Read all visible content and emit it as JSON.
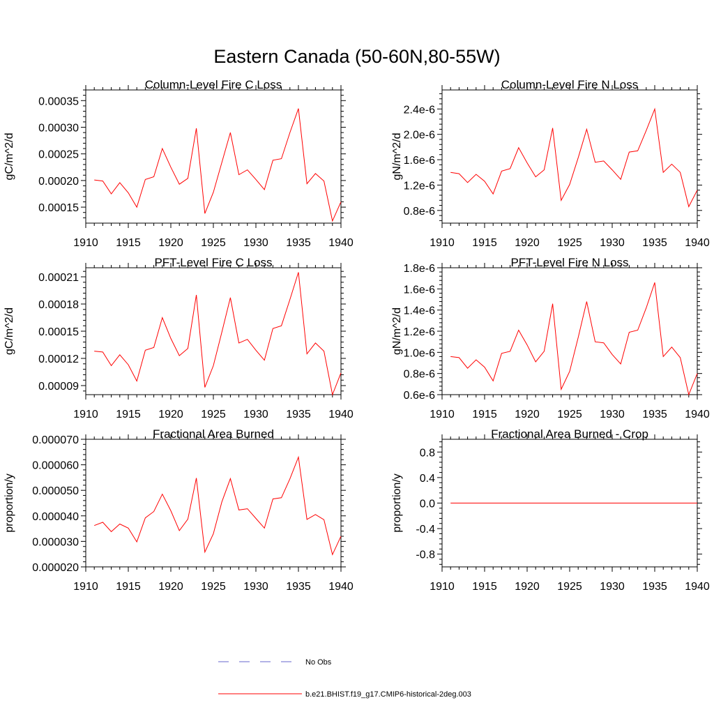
{
  "figure": {
    "title": "Eastern Canada (50-60N,80-55W)"
  },
  "legend": {
    "items": [
      {
        "label": "No Obs",
        "color": "#6666cc",
        "dash": true
      },
      {
        "label": "b.e21.BHIST.f19_g17.CMIP6-historical-2deg.003",
        "color": "#ff0000",
        "dash": false
      }
    ]
  },
  "colors": {
    "series": "#ff0000",
    "axis": "#000000"
  },
  "chart_data": [
    {
      "type": "line",
      "title": "Column-Level Fire C Loss",
      "ylabel": "gC/m^2/d",
      "xlim": [
        1910,
        1940
      ],
      "ylim": [
        0.00012,
        0.00037
      ],
      "xticks": [
        1910,
        1915,
        1920,
        1925,
        1930,
        1935,
        1940
      ],
      "yticks": [
        0.00015,
        0.0002,
        0.00025,
        0.0003,
        0.00035
      ],
      "ytick_labels": [
        "0.00015",
        "0.00020",
        "0.00025",
        "0.00030",
        "0.00035"
      ],
      "x": [
        1911,
        1912,
        1913,
        1914,
        1915,
        1916,
        1917,
        1918,
        1919,
        1920,
        1921,
        1922,
        1923,
        1924,
        1925,
        1926,
        1927,
        1928,
        1929,
        1930,
        1931,
        1932,
        1933,
        1934,
        1935,
        1936,
        1937,
        1938,
        1939,
        1940
      ],
      "series": [
        {
          "name": "b.e21.BHIST.f19_g17.CMIP6-historical-2deg.003",
          "values": [
            0.000201,
            0.000199,
            0.000175,
            0.000196,
            0.000177,
            0.00015,
            0.000202,
            0.000207,
            0.00026,
            0.000225,
            0.000193,
            0.000204,
            0.000298,
            0.000138,
            0.000178,
            0.000234,
            0.00029,
            0.000211,
            0.00022,
            0.000202,
            0.000183,
            0.000238,
            0.000241,
            0.00029,
            0.000335,
            0.000194,
            0.000213,
            0.000199,
            0.000124,
            0.00016
          ]
        }
      ]
    },
    {
      "type": "line",
      "title": "Column-Level Fire N Loss",
      "ylabel": "gN/m^2/d",
      "xlim": [
        1910,
        1940
      ],
      "ylim": [
        6e-07,
        2.7e-06
      ],
      "xticks": [
        1910,
        1915,
        1920,
        1925,
        1930,
        1935,
        1940
      ],
      "yticks": [
        8e-07,
        1.2e-06,
        1.6e-06,
        2e-06,
        2.4e-06
      ],
      "ytick_labels": [
        "0.8e-6",
        "1.2e-6",
        "1.6e-6",
        "2.0e-6",
        "2.4e-6"
      ],
      "x": [
        1911,
        1912,
        1913,
        1914,
        1915,
        1916,
        1917,
        1918,
        1919,
        1920,
        1921,
        1922,
        1923,
        1924,
        1925,
        1926,
        1927,
        1928,
        1929,
        1930,
        1931,
        1932,
        1933,
        1934,
        1935,
        1936,
        1937,
        1938,
        1939,
        1940
      ],
      "series": [
        {
          "name": "b.e21.BHIST.f19_g17.CMIP6-historical-2deg.003",
          "values": [
            1.4e-06,
            1.38e-06,
            1.24e-06,
            1.37e-06,
            1.26e-06,
            1.06e-06,
            1.42e-06,
            1.46e-06,
            1.79e-06,
            1.55e-06,
            1.33e-06,
            1.44e-06,
            2.1e-06,
            9.6e-07,
            1.21e-06,
            1.63e-06,
            2.08e-06,
            1.56e-06,
            1.58e-06,
            1.44e-06,
            1.29e-06,
            1.72e-06,
            1.74e-06,
            2.06e-06,
            2.4e-06,
            1.4e-06,
            1.53e-06,
            1.4e-06,
            8.6e-07,
            1.12e-06
          ]
        }
      ]
    },
    {
      "type": "line",
      "title": "PFT-Level Fire C Loss",
      "ylabel": "gC/m^2/d",
      "xlim": [
        1910,
        1940
      ],
      "ylim": [
        8e-05,
        0.00022
      ],
      "xticks": [
        1910,
        1915,
        1920,
        1925,
        1930,
        1935,
        1940
      ],
      "yticks": [
        9e-05,
        0.00012,
        0.00015,
        0.00018,
        0.00021
      ],
      "ytick_labels": [
        "0.00009",
        "0.00012",
        "0.00015",
        "0.00018",
        "0.00021"
      ],
      "x": [
        1911,
        1912,
        1913,
        1914,
        1915,
        1916,
        1917,
        1918,
        1919,
        1920,
        1921,
        1922,
        1923,
        1924,
        1925,
        1926,
        1927,
        1928,
        1929,
        1930,
        1931,
        1932,
        1933,
        1934,
        1935,
        1936,
        1937,
        1938,
        1939,
        1940
      ],
      "series": [
        {
          "name": "b.e21.BHIST.f19_g17.CMIP6-historical-2deg.003",
          "values": [
            0.000128,
            0.000127,
            0.000112,
            0.000124,
            0.000113,
            9.5e-05,
            0.000129,
            0.000132,
            0.000165,
            0.000142,
            0.000123,
            0.000131,
            0.00019,
            8.8e-05,
            0.000112,
            0.000149,
            0.000187,
            0.000137,
            0.000141,
            0.000129,
            0.000118,
            0.000153,
            0.000156,
            0.000185,
            0.000215,
            0.000125,
            0.000137,
            0.000128,
            8e-05,
            0.000104
          ]
        }
      ]
    },
    {
      "type": "line",
      "title": "PFT-Level Fire N Loss",
      "ylabel": "gN/m^2/d",
      "xlim": [
        1910,
        1940
      ],
      "ylim": [
        6e-07,
        1.8e-06
      ],
      "xticks": [
        1910,
        1915,
        1920,
        1925,
        1930,
        1935,
        1940
      ],
      "yticks": [
        6e-07,
        8e-07,
        1e-06,
        1.2e-06,
        1.4e-06,
        1.6e-06,
        1.8e-06
      ],
      "ytick_labels": [
        "0.6e-6",
        "0.8e-6",
        "1.0e-6",
        "1.2e-6",
        "1.4e-6",
        "1.6e-6",
        "1.8e-6"
      ],
      "x": [
        1911,
        1912,
        1913,
        1914,
        1915,
        1916,
        1917,
        1918,
        1919,
        1920,
        1921,
        1922,
        1923,
        1924,
        1925,
        1926,
        1927,
        1928,
        1929,
        1930,
        1931,
        1932,
        1933,
        1934,
        1935,
        1936,
        1937,
        1938,
        1939,
        1940
      ],
      "series": [
        {
          "name": "b.e21.BHIST.f19_g17.CMIP6-historical-2deg.003",
          "values": [
            9.6e-07,
            9.5e-07,
            8.5e-07,
            9.3e-07,
            8.6e-07,
            7.3e-07,
            9.9e-07,
            1.01e-06,
            1.21e-06,
            1.07e-06,
            9.1e-07,
            1.01e-06,
            1.46e-06,
            6.5e-07,
            8.2e-07,
            1.14e-06,
            1.48e-06,
            1.1e-06,
            1.09e-06,
            9.8e-07,
            8.9e-07,
            1.19e-06,
            1.21e-06,
            1.42e-06,
            1.66e-06,
            9.6e-07,
            1.05e-06,
            9.5e-07,
            6e-07,
            8e-07
          ]
        }
      ]
    },
    {
      "type": "line",
      "title": "Fractional Area Burned",
      "ylabel": "proportion/y",
      "xlim": [
        1910,
        1940
      ],
      "ylim": [
        2e-05,
        7e-05
      ],
      "xticks": [
        1910,
        1915,
        1920,
        1925,
        1930,
        1935,
        1940
      ],
      "yticks": [
        2e-05,
        3e-05,
        4e-05,
        5e-05,
        6e-05,
        7e-05
      ],
      "ytick_labels": [
        "0.000020",
        "0.000030",
        "0.000040",
        "0.000050",
        "0.000060",
        "0.000070"
      ],
      "x": [
        1911,
        1912,
        1913,
        1914,
        1915,
        1916,
        1917,
        1918,
        1919,
        1920,
        1921,
        1922,
        1923,
        1924,
        1925,
        1926,
        1927,
        1928,
        1929,
        1930,
        1931,
        1932,
        1933,
        1934,
        1935,
        1936,
        1937,
        1938,
        1939,
        1940
      ],
      "series": [
        {
          "name": "b.e21.BHIST.f19_g17.CMIP6-historical-2deg.003",
          "values": [
            3.62e-05,
            3.75e-05,
            3.38e-05,
            3.68e-05,
            3.52e-05,
            2.98e-05,
            3.92e-05,
            4.17e-05,
            4.85e-05,
            4.2e-05,
            3.42e-05,
            3.87e-05,
            5.48e-05,
            2.58e-05,
            3.3e-05,
            4.55e-05,
            5.46e-05,
            4.23e-05,
            4.28e-05,
            3.9e-05,
            3.52e-05,
            4.66e-05,
            4.71e-05,
            5.45e-05,
            6.3e-05,
            3.86e-05,
            4.05e-05,
            3.85e-05,
            2.48e-05,
            3.2e-05
          ]
        }
      ]
    },
    {
      "type": "line",
      "title": "Fractional Area Burned - Crop",
      "ylabel": "proportion/y",
      "xlim": [
        1910,
        1940
      ],
      "ylim": [
        -1.0,
        1.0
      ],
      "xticks": [
        1910,
        1915,
        1920,
        1925,
        1930,
        1935,
        1940
      ],
      "yticks": [
        -0.8,
        -0.4,
        0.0,
        0.4,
        0.8
      ],
      "ytick_labels": [
        "-0.8",
        "-0.4",
        "0.0",
        "0.4",
        "0.8"
      ],
      "x": [
        1911,
        1912,
        1913,
        1914,
        1915,
        1916,
        1917,
        1918,
        1919,
        1920,
        1921,
        1922,
        1923,
        1924,
        1925,
        1926,
        1927,
        1928,
        1929,
        1930,
        1931,
        1932,
        1933,
        1934,
        1935,
        1936,
        1937,
        1938,
        1939,
        1940
      ],
      "series": [
        {
          "name": "b.e21.BHIST.f19_g17.CMIP6-historical-2deg.003",
          "values": [
            0,
            0,
            0,
            0,
            0,
            0,
            0,
            0,
            0,
            0,
            0,
            0,
            0,
            0,
            0,
            0,
            0,
            0,
            0,
            0,
            0,
            0,
            0,
            0,
            0,
            0,
            0,
            0,
            0,
            0
          ]
        }
      ]
    }
  ]
}
